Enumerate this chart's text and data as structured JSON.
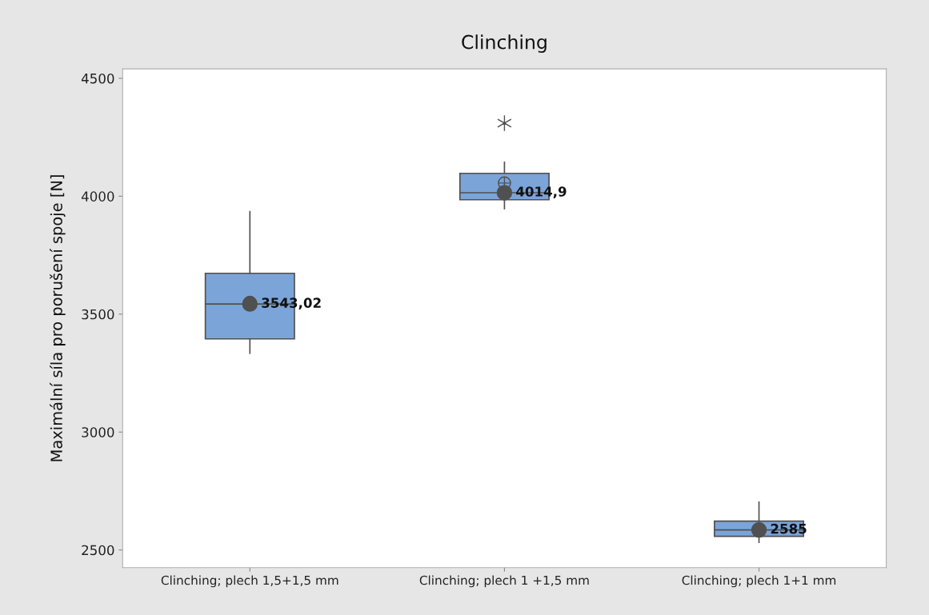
{
  "chart_data": {
    "type": "box",
    "title": "Clinching",
    "ylabel": "Maximální síla pro porušení spoje [N]",
    "categories": [
      "Clinching; plech 1,5+1,5 mm",
      "Clinching; plech 1 +1,5 mm",
      "Clinching; plech 1+1 mm"
    ],
    "ylim": [
      2425,
      4540
    ],
    "yticks": [
      2500,
      3000,
      3500,
      4000,
      4500
    ],
    "grid": false,
    "legend": false,
    "series": [
      {
        "type": "box",
        "color": "#7ba4d9",
        "boxes": [
          {
            "low": 3334,
            "q1": 3395,
            "median": 3543.02,
            "q3": 3673,
            "high": 3935,
            "mean": 3550
          },
          {
            "low": 3947,
            "q1": 3985,
            "median": 4014.9,
            "q3": 4097,
            "high": 4144,
            "mean": 4056,
            "outliers": [
              4310
            ]
          },
          {
            "low": 2532,
            "q1": 2558,
            "median": 2585,
            "q3": 2622,
            "high": 2703
          }
        ]
      },
      {
        "type": "scatter",
        "color": "#505050",
        "marker": "circle",
        "values": [
          3543.02,
          4014.9,
          2585
        ],
        "value_labels": [
          "3543,02",
          "4014,9",
          "2585"
        ]
      }
    ]
  }
}
